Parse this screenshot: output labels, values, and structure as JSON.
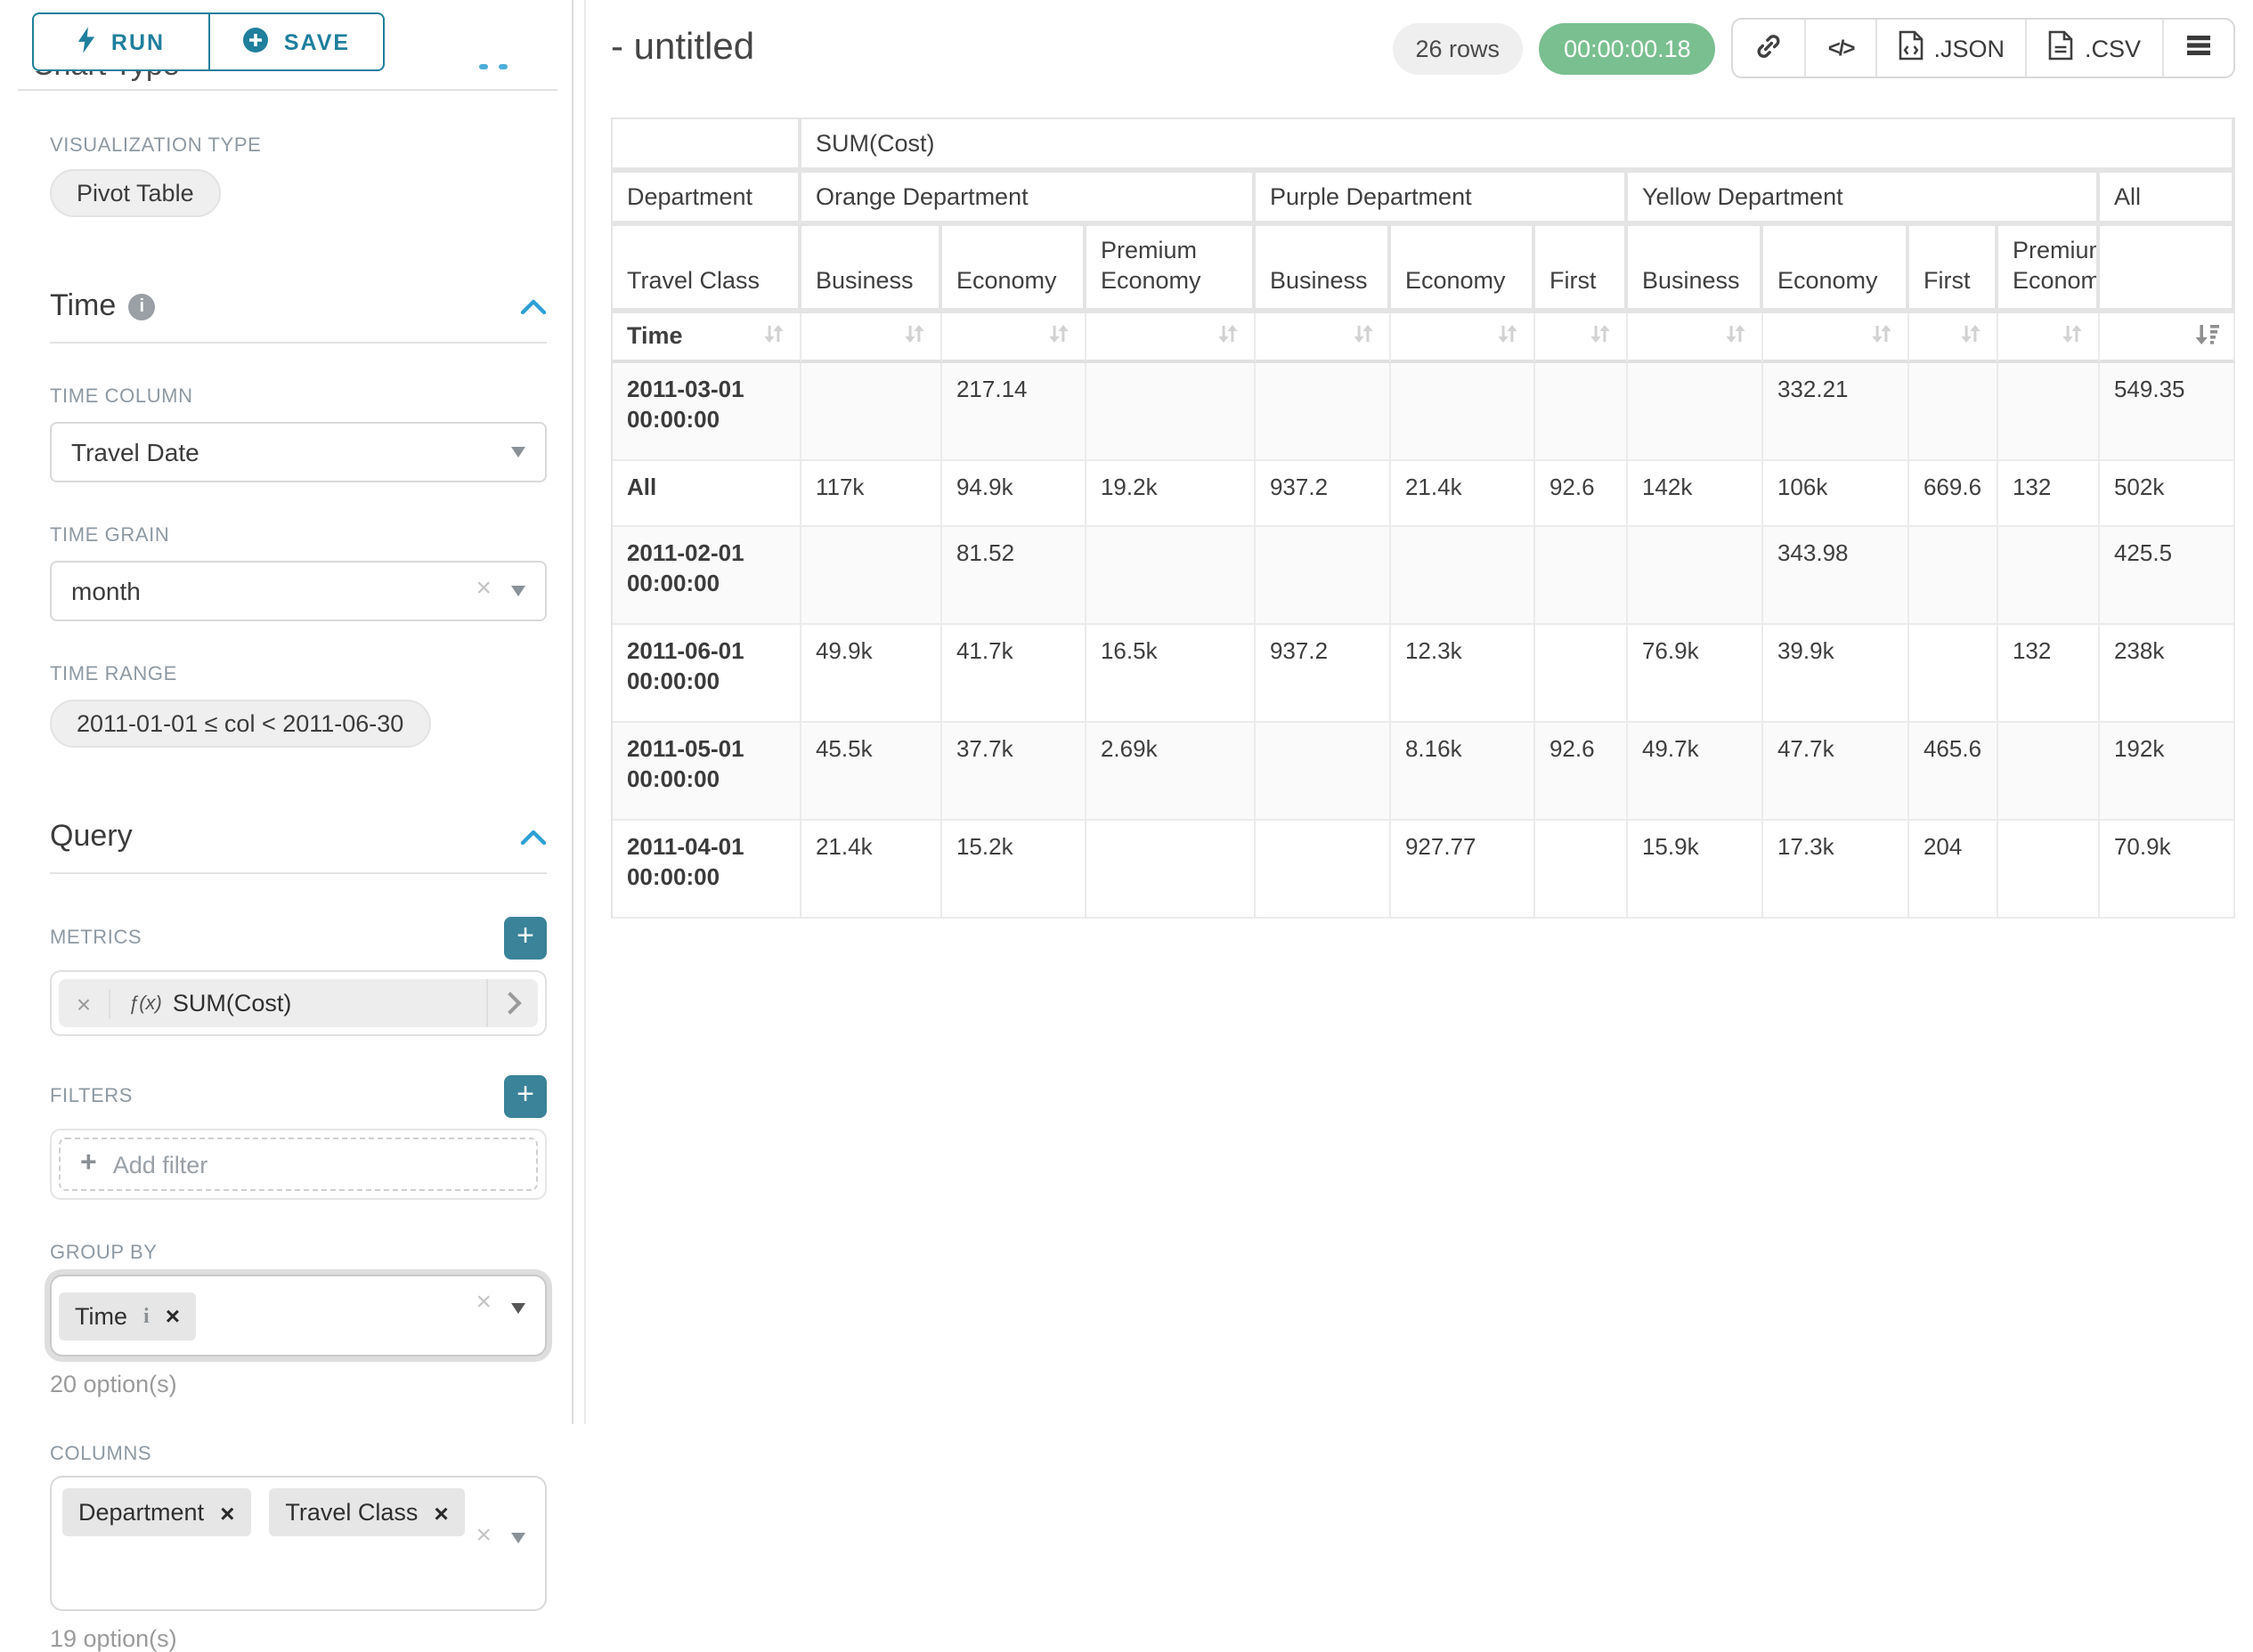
{
  "colors": {
    "accent_teal": "#1f7f9c",
    "chevron_blue": "#2e9fd4",
    "timer_green": "#7abf90",
    "plus_teal": "#3a8398"
  },
  "sidebar": {
    "run_label": "RUN",
    "save_label": "SAVE",
    "chart_type_heading": "Chart Type",
    "viz_type_label": "VISUALIZATION TYPE",
    "viz_type_value": "Pivot Table",
    "time_section_title": "Time",
    "time_column_label": "TIME COLUMN",
    "time_column_value": "Travel Date",
    "time_grain_label": "TIME GRAIN",
    "time_grain_value": "month",
    "time_range_label": "TIME RANGE",
    "time_range_value": "2011-01-01 ≤ col < 2011-06-30",
    "query_section_title": "Query",
    "metrics_label": "METRICS",
    "metric_fx": "ƒ(x)",
    "metric_value": "SUM(Cost)",
    "filters_label": "FILTERS",
    "add_filter_label": "Add filter",
    "group_by_label": "GROUP BY",
    "group_by_tags": [
      {
        "label": "Time"
      }
    ],
    "group_by_options": "20 option(s)",
    "columns_label": "COLUMNS",
    "columns_tags": [
      {
        "label": "Department"
      },
      {
        "label": "Travel Class"
      }
    ],
    "columns_options": "19 option(s)"
  },
  "header": {
    "title": "- untitled",
    "rows_badge": "26 rows",
    "timer": "00:00:00.18",
    "export_json_label": ".JSON",
    "export_csv_label": ".CSV"
  },
  "table": {
    "metric_header": "SUM(Cost)",
    "row_dim_label": "Department",
    "col_dim_label": "Travel Class",
    "time_label": "Time",
    "groups": [
      {
        "label": "Orange Department",
        "cols": [
          "Business",
          "Economy",
          "Premium Economy"
        ]
      },
      {
        "label": "Purple Department",
        "cols": [
          "Business",
          "Economy",
          "First"
        ]
      },
      {
        "label": "Yellow Department",
        "cols": [
          "Business",
          "Economy",
          "First",
          "Premium Economy"
        ]
      },
      {
        "label": "All",
        "cols": [
          ""
        ]
      }
    ],
    "rows": [
      {
        "label": "2011-03-01 00:00:00",
        "cells": [
          "",
          "217.14",
          "",
          "",
          "",
          "",
          "",
          "332.21",
          "",
          "",
          "549.35"
        ]
      },
      {
        "label": "All",
        "cells": [
          "117k",
          "94.9k",
          "19.2k",
          "937.2",
          "21.4k",
          "92.6",
          "142k",
          "106k",
          "669.6",
          "132",
          "502k"
        ]
      },
      {
        "label": "2011-02-01 00:00:00",
        "cells": [
          "",
          "81.52",
          "",
          "",
          "",
          "",
          "",
          "343.98",
          "",
          "",
          "425.5"
        ]
      },
      {
        "label": "2011-06-01 00:00:00",
        "cells": [
          "49.9k",
          "41.7k",
          "16.5k",
          "937.2",
          "12.3k",
          "",
          "76.9k",
          "39.9k",
          "",
          "132",
          "238k"
        ]
      },
      {
        "label": "2011-05-01 00:00:00",
        "cells": [
          "45.5k",
          "37.7k",
          "2.69k",
          "",
          "8.16k",
          "92.6",
          "49.7k",
          "47.7k",
          "465.6",
          "",
          "192k"
        ]
      },
      {
        "label": "2011-04-01 00:00:00",
        "cells": [
          "21.4k",
          "15.2k",
          "",
          "",
          "927.77",
          "",
          "15.9k",
          "17.3k",
          "204",
          "",
          "70.9k"
        ]
      }
    ]
  }
}
